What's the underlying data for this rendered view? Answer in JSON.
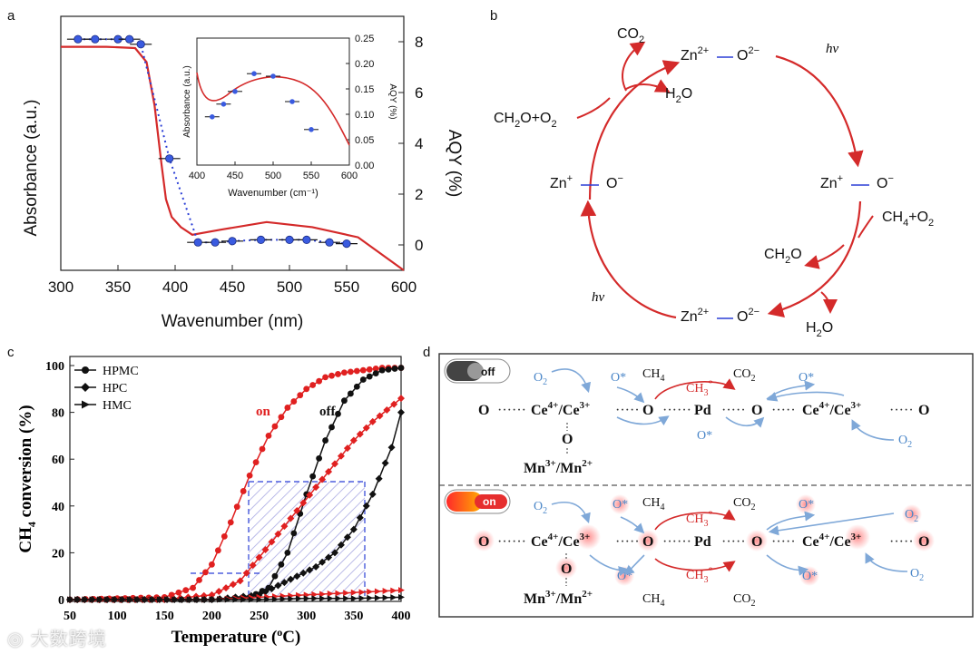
{
  "panels": {
    "a": "a",
    "b": "b",
    "c": "c",
    "d": "d"
  },
  "chart_data": [
    {
      "type": "line",
      "panel": "a",
      "xlabel": "Wavenumber (nm)",
      "ylabel": "Absorbance (a.u.)",
      "y2label": "AQY (%)",
      "xlim": [
        300,
        600
      ],
      "x_ticks": [
        "300",
        "350",
        "400",
        "450",
        "500",
        "550",
        "600"
      ],
      "y2_ticks": [
        "0",
        "2",
        "4",
        "6",
        "8"
      ],
      "y2lim": [
        -1,
        9
      ],
      "series": [
        {
          "name": "absorbance",
          "color": "#d42a2a",
          "x": [
            300,
            340,
            365,
            375,
            382,
            388,
            392,
            397,
            405,
            415,
            440,
            480,
            520,
            560,
            600
          ],
          "y": [
            7.8,
            7.8,
            7.75,
            7.2,
            5.5,
            3.2,
            1.8,
            1.1,
            0.7,
            0.4,
            0.6,
            0.9,
            0.7,
            0.3,
            -1.0
          ]
        },
        {
          "name": "AQY",
          "color": "#2b3fd6",
          "style": "dotted",
          "x": [
            315,
            330,
            350,
            360,
            370,
            395,
            420,
            435,
            450,
            475,
            500,
            515,
            535,
            550
          ],
          "y": [
            8.1,
            8.1,
            8.1,
            8.1,
            7.9,
            3.4,
            0.1,
            0.1,
            0.15,
            0.2,
            0.2,
            0.2,
            0.1,
            0.05
          ]
        }
      ]
    },
    {
      "type": "line",
      "panel": "a-inset",
      "xlabel": "Wavenumber (cm⁻¹)",
      "ylabel": "Absorbance (a.u.)",
      "y2label": "AQY (%)",
      "xlim": [
        400,
        600
      ],
      "x_ticks": [
        "400",
        "450",
        "500",
        "550",
        "600"
      ],
      "y2_ticks": [
        "0.00",
        "0.05",
        "0.10",
        "0.15",
        "0.20",
        "0.25"
      ],
      "y2lim": [
        0,
        0.25
      ],
      "series": [
        {
          "name": "AQY",
          "color": "#2b3fd6",
          "x": [
            420,
            435,
            450,
            475,
            500,
            525,
            550
          ],
          "y": [
            0.095,
            0.12,
            0.145,
            0.18,
            0.175,
            0.125,
            0.07
          ]
        }
      ]
    },
    {
      "type": "line",
      "panel": "c",
      "xlabel": "Temperature (°C)",
      "ylabel": "CH4 conversion (%)",
      "xlim": [
        50,
        400
      ],
      "ylim": [
        0,
        100
      ],
      "x_ticks": [
        "50",
        "100",
        "150",
        "200",
        "250",
        "300",
        "350",
        "400"
      ],
      "y_ticks": [
        "0",
        "20",
        "40",
        "60",
        "80",
        "100"
      ],
      "legend": [
        "HPMC",
        "HPC",
        "HMC"
      ],
      "annotations": [
        "on",
        "off"
      ],
      "series": [
        {
          "name": "HPMC on",
          "color": "#e02020",
          "x": [
            50,
            100,
            150,
            180,
            200,
            220,
            240,
            260,
            280,
            300,
            320,
            340,
            360,
            380,
            400
          ],
          "y": [
            0,
            0.5,
            1,
            5,
            15,
            33,
            53,
            70,
            82,
            90,
            95,
            97,
            98,
            99,
            99
          ]
        },
        {
          "name": "HPMC off",
          "color": "#111111",
          "x": [
            50,
            150,
            200,
            240,
            260,
            280,
            300,
            320,
            340,
            360,
            380,
            400
          ],
          "y": [
            0,
            0,
            0,
            1,
            5,
            20,
            45,
            68,
            85,
            94,
            98,
            99
          ]
        },
        {
          "name": "HPC on",
          "color": "#e02020",
          "x": [
            50,
            150,
            200,
            230,
            250,
            270,
            290,
            310,
            330,
            350,
            370,
            400
          ],
          "y": [
            0,
            0,
            2,
            8,
            18,
            28,
            38,
            48,
            58,
            68,
            76,
            86
          ]
        },
        {
          "name": "HPC off",
          "color": "#111111",
          "x": [
            50,
            200,
            250,
            270,
            290,
            310,
            330,
            350,
            370,
            390,
            400
          ],
          "y": [
            0,
            0,
            2,
            6,
            10,
            14,
            20,
            30,
            45,
            65,
            80
          ]
        },
        {
          "name": "HMC on",
          "color": "#e02020",
          "x": [
            50,
            200,
            250,
            300,
            350,
            400
          ],
          "y": [
            0,
            0,
            1,
            2,
            3,
            4
          ]
        },
        {
          "name": "HMC off",
          "color": "#111111",
          "x": [
            50,
            200,
            250,
            300,
            350,
            400
          ],
          "y": [
            0,
            0,
            0,
            0.5,
            0.5,
            1
          ]
        }
      ]
    }
  ],
  "cycle_b": {
    "top": {
      "zn": "Zn",
      "zn_sup": "2+",
      "o": "O",
      "o_sup": "2−"
    },
    "left": {
      "zn": "Zn",
      "zn_sup": "+",
      "o": "O",
      "o_sup": "−"
    },
    "right": {
      "zn": "Zn",
      "zn_sup": "+",
      "o": "O",
      "o_sup": "−"
    },
    "bottom": {
      "zn": "Zn",
      "zn_sup": "2+",
      "o": "O",
      "o_sup": "2−"
    },
    "co2": "CO",
    "co2_sub": "2",
    "h2o_top": "H",
    "h2o_top_rest": "O",
    "ch2o_o2": "CH",
    "ch2o_o2_mid": "O+O",
    "ch4_o2": "CH",
    "ch4_o2_mid": "+O",
    "ch2o": "CH",
    "ch2o_rest": "O",
    "h2o_bottom": "H",
    "h2o_bottom_rest": "O",
    "hv": "hν"
  },
  "scheme_d": {
    "toggle_off": "off",
    "toggle_on": "on",
    "o": "O",
    "ce": "Ce",
    "ce4": "4+",
    "ce3": "3+",
    "pd": "Pd",
    "mn": "Mn",
    "mn3": "3+",
    "mn2": "2+",
    "o2": "O",
    "ostar": "O*",
    "ch4": "CH",
    "co2": "CO",
    "ch3": "CH",
    "ch3_sup": "*"
  },
  "watermark": "◎ 大数跨境"
}
